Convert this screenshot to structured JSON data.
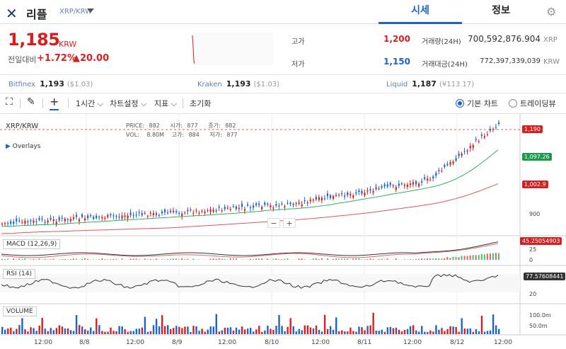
{
  "header": {
    "logo_glyph": "✕",
    "coin_name": "리플",
    "pair": "XRP/KRW",
    "tabs": [
      {
        "label": "시세",
        "active": true
      },
      {
        "label": "정보",
        "active": false
      }
    ]
  },
  "ticker": {
    "price": "1,185",
    "unit": "KRW",
    "change_label": "전일대비",
    "change_pct": "+1.72%",
    "change_amount": "▲20.00",
    "high_label": "고가",
    "high": "1,200",
    "low_label": "저가",
    "low": "1,150",
    "volume_label": "거래량(24H)",
    "volume": "700,592,876.904",
    "volume_unit": "XRP",
    "value_label": "거래대금(24H)",
    "value": "772,397,339,039",
    "value_unit": "KRW",
    "colors": {
      "up": "#d62020",
      "down": "#1e63c6"
    }
  },
  "exchanges": [
    {
      "name": "Bitfinex",
      "price": "1,193",
      "sub": "($1.03)"
    },
    {
      "name": "Kraken",
      "price": "1,193",
      "sub": "($1.03)"
    },
    {
      "name": "Liquid",
      "price": "1,187",
      "sub": "(¥113.17)"
    }
  ],
  "toolbar": {
    "interval": "1시간",
    "chart_settings": "차트설정",
    "indicators": "지표",
    "reset": "초기화",
    "basic_chart": "기본 차트",
    "tradingview": "트레이딩뷰"
  },
  "chart": {
    "symbol": "XRP/KRW",
    "overlays": "Overlays",
    "ohlc": {
      "price_lbl": "PRICE:",
      "price": "882",
      "open_lbl": "시가:",
      "open": "877",
      "close_lbl": "종가:",
      "close": "882",
      "vol_lbl": "VOL:",
      "vol": "8.80M",
      "high_lbl": "고가:",
      "high": "884",
      "low_lbl": "저가:",
      "low": "877"
    },
    "price_tags": {
      "last": "1,190",
      "ma_green": "1,097.26",
      "ma_red": "1,002.9"
    },
    "y_axis": {
      "level_900": "900"
    },
    "macd": {
      "label": "MACD (12,26,9)",
      "value": "45.25054903",
      "ticks": [
        "25",
        "0"
      ]
    },
    "rsi": {
      "label": "RSI (14)",
      "value": "77.57608441",
      "ticks": [
        "20"
      ]
    },
    "volume": {
      "label": "VOLUME",
      "ticks": [
        "100.0m",
        "50.0m"
      ]
    },
    "x_axis": [
      "12:00",
      "8/8",
      "12:00",
      "8/9",
      "12:00",
      "8/10",
      "12:00",
      "8/11",
      "12:00",
      "8/12",
      "12:00"
    ],
    "zoom_out": "−",
    "zoom_in": "+"
  }
}
